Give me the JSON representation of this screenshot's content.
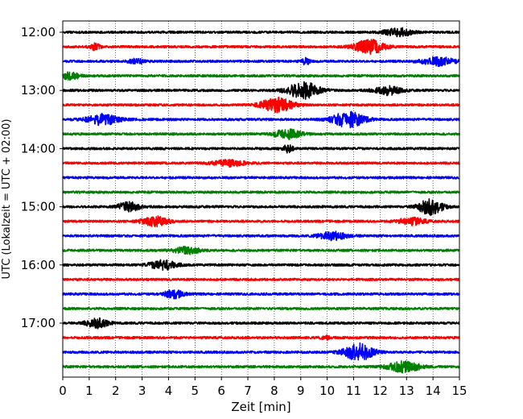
{
  "chart_data": {
    "type": "line",
    "xlabel": "Zeit  [min]",
    "ylabel": "UTC (Lokalzeit = UTC + 02:00)",
    "x_ticks": [
      0,
      1,
      2,
      3,
      4,
      5,
      6,
      7,
      8,
      9,
      10,
      11,
      12,
      13,
      14,
      15
    ],
    "xlim": [
      0,
      15
    ],
    "y_ticks": [
      "12:00",
      "13:00",
      "14:00",
      "15:00",
      "16:00",
      "17:00"
    ],
    "grid_x": "dotted",
    "series_colors": [
      "#000000",
      "#ff0000",
      "#0000ff",
      "#008000"
    ],
    "traces": [
      {
        "label": "12:00",
        "color": "#000000",
        "events": [
          [
            12.7,
            0.35,
            0.5
          ]
        ]
      },
      {
        "label": "12:15",
        "color": "#ff0000",
        "events": [
          [
            11.6,
            0.6,
            0.55
          ],
          [
            1.2,
            0.25,
            0.2
          ]
        ]
      },
      {
        "label": "12:30",
        "color": "#0000ff",
        "events": [
          [
            2.8,
            0.2,
            0.3
          ],
          [
            9.2,
            0.3,
            0.15
          ],
          [
            14.2,
            0.35,
            0.6
          ]
        ]
      },
      {
        "label": "12:45",
        "color": "#008000",
        "events": [
          [
            0.3,
            0.35,
            0.3
          ]
        ]
      },
      {
        "label": "13:00",
        "color": "#000000",
        "events": [
          [
            9.1,
            0.7,
            0.6
          ],
          [
            12.3,
            0.35,
            0.5
          ]
        ]
      },
      {
        "label": "13:15",
        "color": "#ff0000",
        "events": [
          [
            8.1,
            0.6,
            0.6
          ]
        ]
      },
      {
        "label": "13:30",
        "color": "#0000ff",
        "events": [
          [
            1.5,
            0.45,
            0.6
          ],
          [
            10.8,
            0.65,
            0.6
          ]
        ]
      },
      {
        "label": "13:45",
        "color": "#008000",
        "events": [
          [
            8.5,
            0.4,
            0.5
          ]
        ]
      },
      {
        "label": "14:00",
        "color": "#000000",
        "events": [
          [
            8.5,
            0.3,
            0.2
          ]
        ]
      },
      {
        "label": "14:15",
        "color": "#ff0000",
        "events": [
          [
            6.3,
            0.25,
            0.6
          ]
        ]
      },
      {
        "label": "14:30",
        "color": "#0000ff",
        "events": []
      },
      {
        "label": "14:45",
        "color": "#008000",
        "events": []
      },
      {
        "label": "15:00",
        "color": "#000000",
        "events": [
          [
            2.5,
            0.4,
            0.4
          ],
          [
            13.9,
            0.7,
            0.45
          ]
        ]
      },
      {
        "label": "15:15",
        "color": "#ff0000",
        "events": [
          [
            3.5,
            0.4,
            0.5
          ],
          [
            13.2,
            0.3,
            0.5
          ]
        ]
      },
      {
        "label": "15:30",
        "color": "#0000ff",
        "events": [
          [
            10.2,
            0.35,
            0.5
          ]
        ]
      },
      {
        "label": "15:45",
        "color": "#008000",
        "events": [
          [
            4.7,
            0.3,
            0.5
          ]
        ]
      },
      {
        "label": "16:00",
        "color": "#000000",
        "events": [
          [
            3.8,
            0.4,
            0.5
          ]
        ]
      },
      {
        "label": "16:15",
        "color": "#ff0000",
        "events": []
      },
      {
        "label": "16:30",
        "color": "#0000ff",
        "events": [
          [
            4.2,
            0.35,
            0.35
          ]
        ]
      },
      {
        "label": "16:45",
        "color": "#008000",
        "events": []
      },
      {
        "label": "17:00",
        "color": "#000000",
        "events": [
          [
            1.3,
            0.4,
            0.4
          ]
        ]
      },
      {
        "label": "17:15",
        "color": "#ff0000",
        "events": [
          [
            9.9,
            0.2,
            0.15
          ]
        ]
      },
      {
        "label": "17:30",
        "color": "#0000ff",
        "events": [
          [
            11.2,
            0.75,
            0.55
          ]
        ]
      },
      {
        "label": "17:45",
        "color": "#008000",
        "events": [
          [
            12.9,
            0.45,
            0.6
          ]
        ]
      }
    ]
  }
}
